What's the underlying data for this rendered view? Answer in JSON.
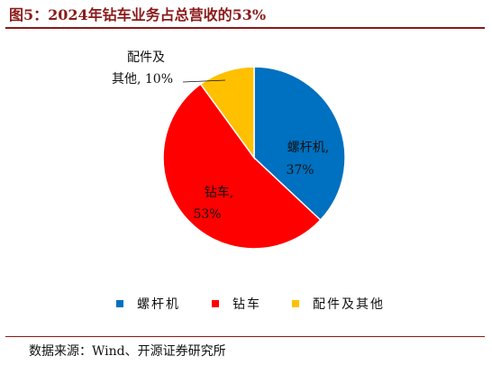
{
  "title": "图5：2024年钻车业务占总营收的53%",
  "source": "数据来源：Wind、开源证券研究所",
  "chart_data": {
    "type": "pie",
    "slices": [
      {
        "name": "螺杆机",
        "value": 37,
        "label": "37%",
        "color": "#0070C0"
      },
      {
        "name": "钻车",
        "value": 53,
        "label": "53%",
        "color": "#FF0000"
      },
      {
        "name": "配件及其他",
        "value": 10,
        "label": "10%",
        "color": "#FFC000"
      }
    ],
    "legend": {
      "position": "bottom",
      "items": [
        "螺杆机",
        "钻车",
        "配件及其他"
      ]
    },
    "annotations": [
      {
        "line1": "螺杆机,",
        "line2": "37%"
      },
      {
        "line1": "钻车,",
        "line2": "53%"
      },
      {
        "line1": "配件及",
        "line2": "其他, 10%"
      }
    ]
  }
}
